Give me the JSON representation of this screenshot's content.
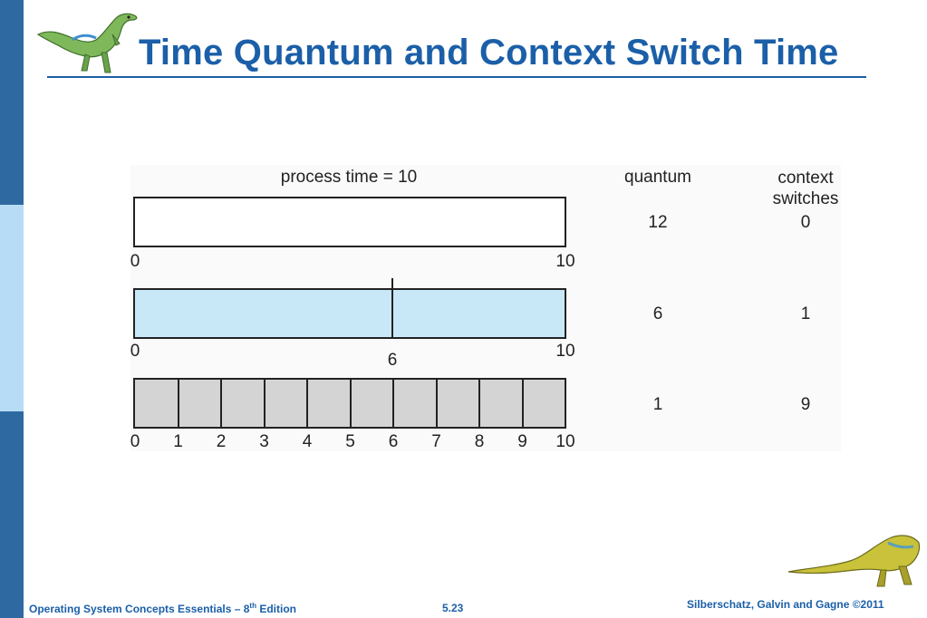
{
  "slide": {
    "title": "Time Quantum and Context Switch Time"
  },
  "diagram": {
    "header_process": "process time = 10",
    "header_quantum": "quantum",
    "header_context_line1": "context",
    "header_context_line2": "switches",
    "rows": [
      {
        "quantum": "12",
        "context_switches": "0",
        "ticks": [
          "0",
          "10"
        ],
        "divider_labels": []
      },
      {
        "quantum": "6",
        "context_switches": "1",
        "ticks": [
          "0",
          "10"
        ],
        "divider_labels": [
          "6"
        ]
      },
      {
        "quantum": "1",
        "context_switches": "9",
        "ticks": [
          "0",
          "1",
          "2",
          "3",
          "4",
          "5",
          "6",
          "7",
          "8",
          "9",
          "10"
        ],
        "divider_labels": []
      }
    ],
    "colors": {
      "row1_fill": "#ffffff",
      "row2_fill": "#c8e8f8",
      "row3_fill": "#d4d4d4"
    }
  },
  "footer": {
    "left_text": "Operating System Concepts Essentials – 8",
    "left_sup": "th",
    "left_suffix": " Edition",
    "page_number": "5.23",
    "right_text": "Silberschatz, Galvin and Gagne ©2011"
  },
  "theme": {
    "accent": "#1b5fa8",
    "sidebar_dark": "#2e6aa1",
    "sidebar_light": "#b7dcf6"
  },
  "icons": {
    "top_logo": "dinosaur-logo-icon",
    "bottom_logo": "dinosaur-logo-icon"
  }
}
